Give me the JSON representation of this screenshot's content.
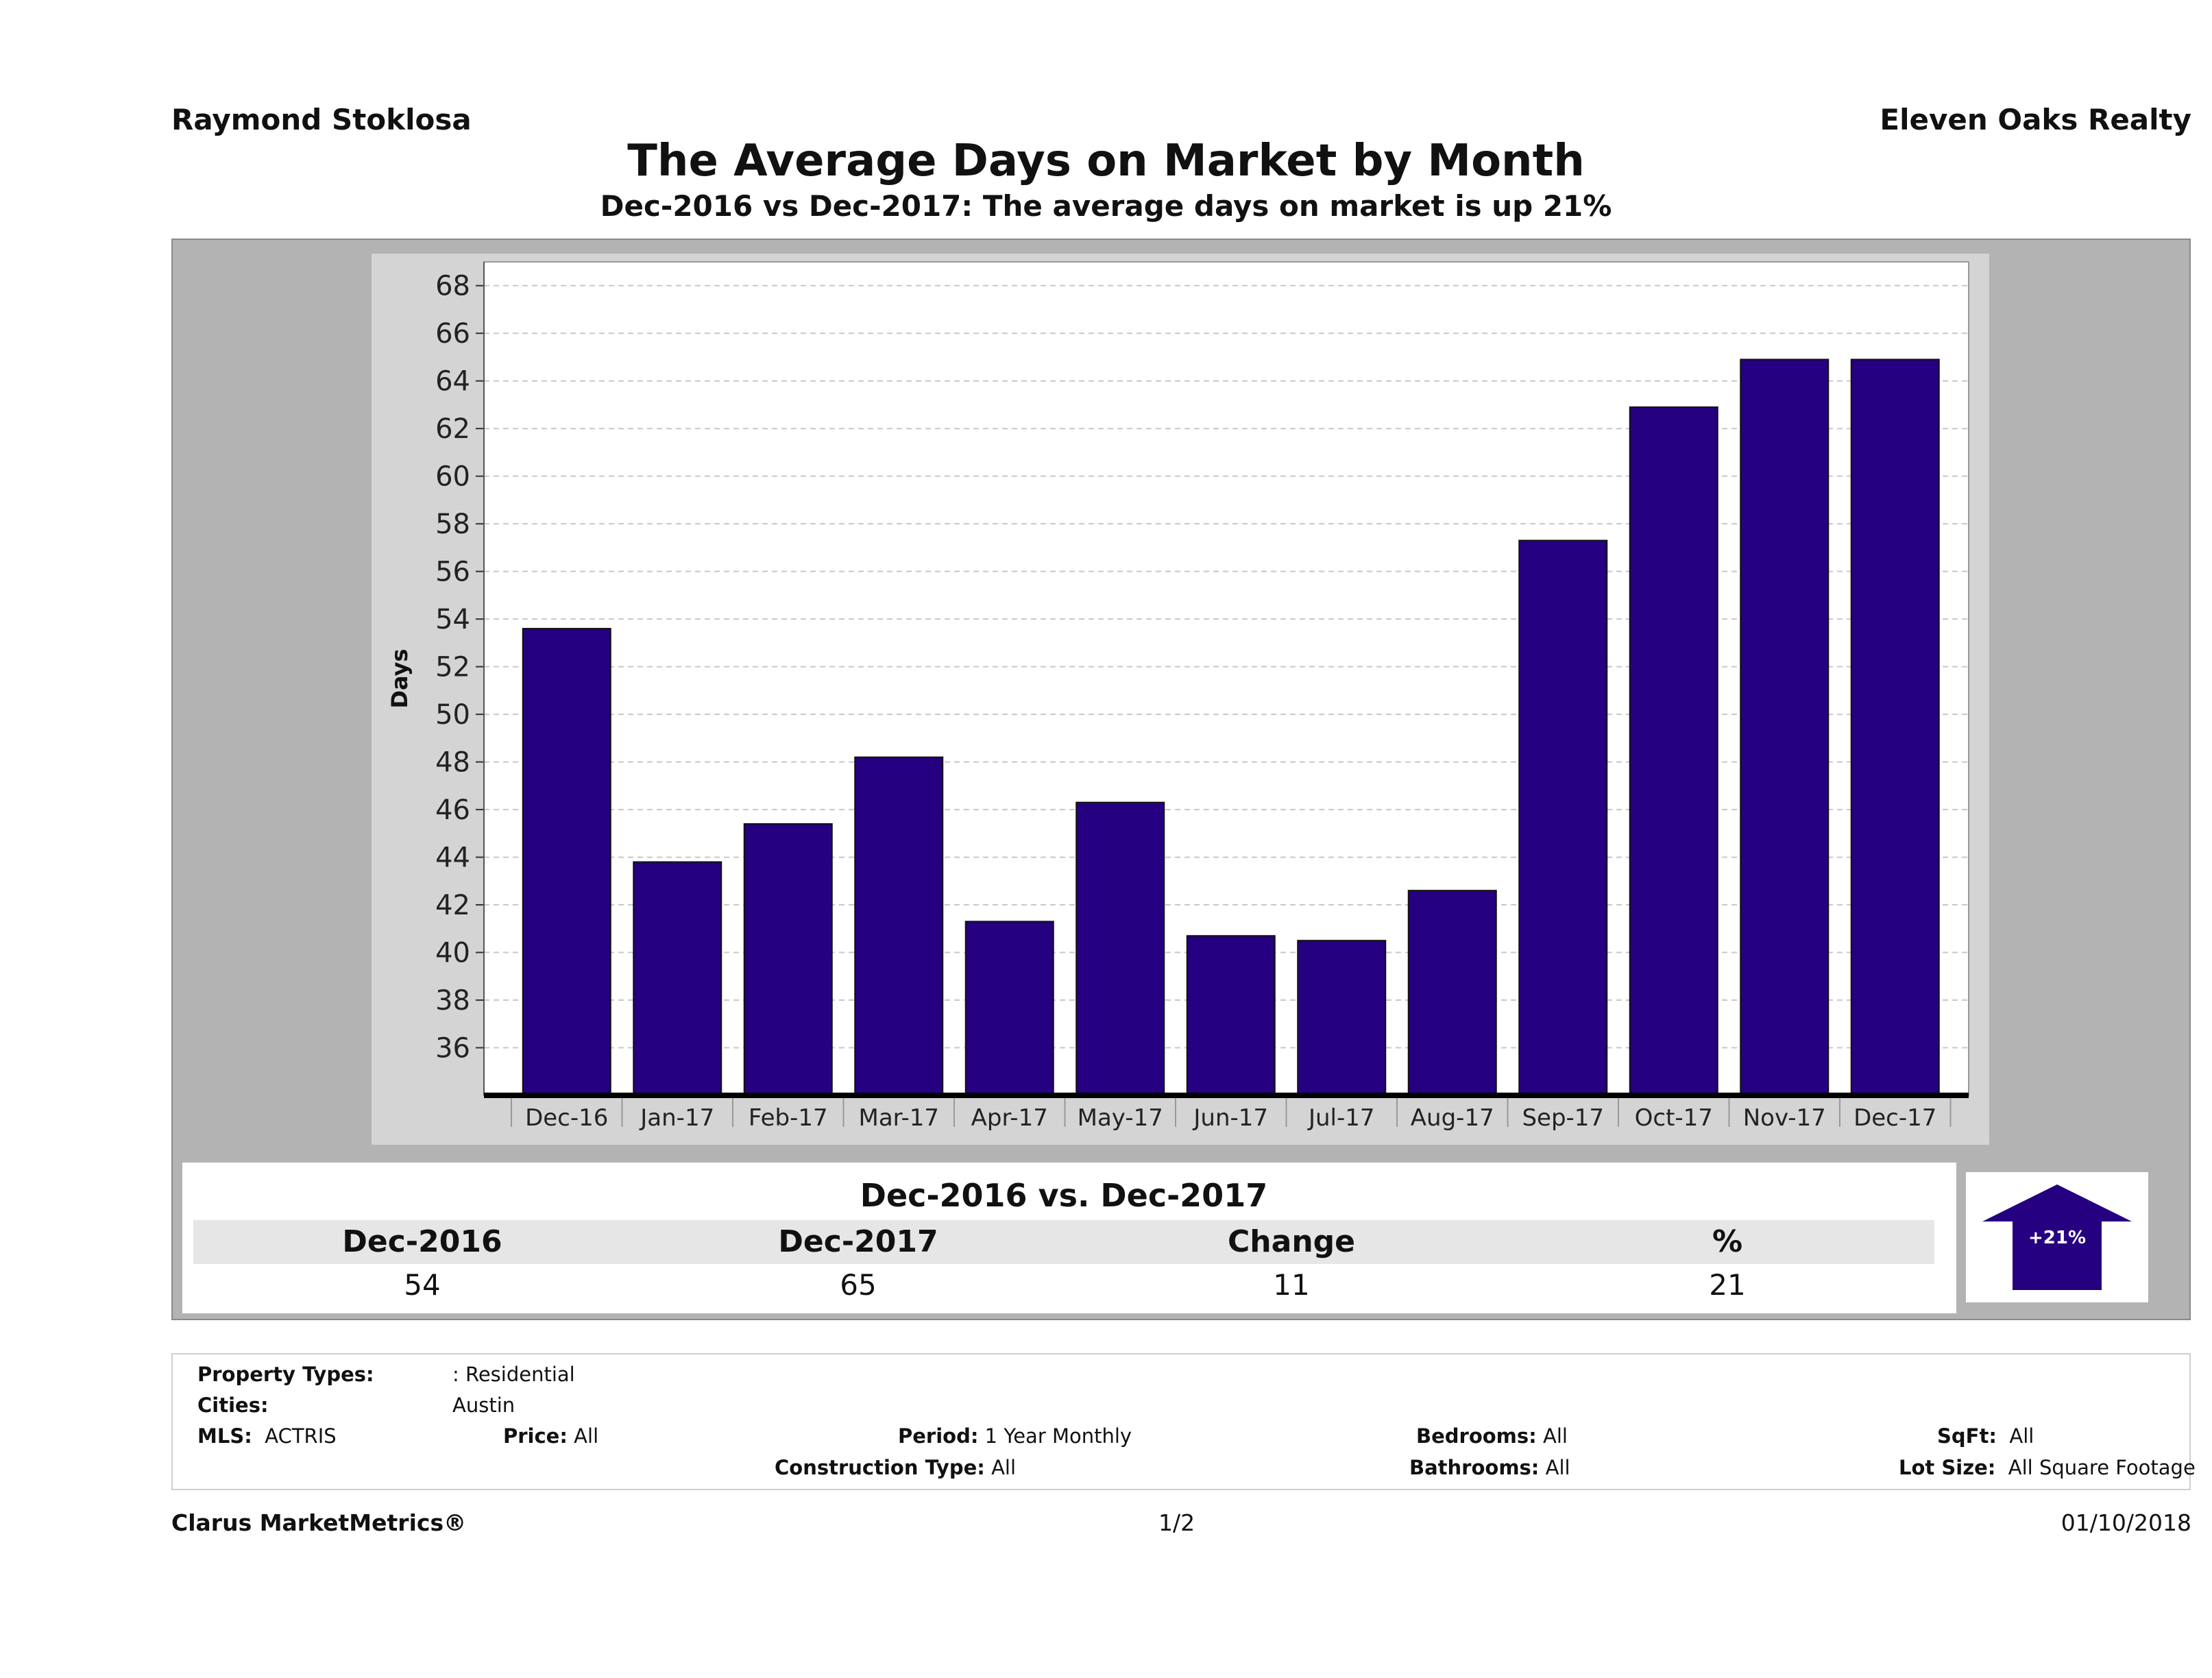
{
  "header": {
    "agent": "Raymond Stoklosa",
    "broker": "Eleven Oaks Realty",
    "title": "The Average Days on Market by Month",
    "subtitle": "Dec-2016 vs Dec-2017: The average days on market is up 21%"
  },
  "colors": {
    "bar": "#250080",
    "panel": "#b3b3b3",
    "plot_bg": "#ffffff"
  },
  "chart_data": {
    "type": "bar",
    "categories": [
      "Dec-16",
      "Jan-17",
      "Feb-17",
      "Mar-17",
      "Apr-17",
      "May-17",
      "Jun-17",
      "Jul-17",
      "Aug-17",
      "Sep-17",
      "Oct-17",
      "Nov-17",
      "Dec-17"
    ],
    "values": [
      53.6,
      43.8,
      45.4,
      48.2,
      41.3,
      46.3,
      40.7,
      40.5,
      42.6,
      57.3,
      62.9,
      64.9,
      64.9
    ],
    "ylabel": "Days",
    "xlabel": "",
    "ylim": [
      34,
      69
    ],
    "yticks": [
      36,
      38,
      40,
      42,
      44,
      46,
      48,
      50,
      52,
      54,
      56,
      58,
      60,
      62,
      64,
      66,
      68
    ],
    "grid": true
  },
  "comparison": {
    "heading": "Dec-2016 vs. Dec-2017",
    "labels": [
      "Dec-2016",
      "Dec-2017",
      "Change",
      "%"
    ],
    "values": [
      "54",
      "65",
      "11",
      "21"
    ],
    "badge": "+21%"
  },
  "criteria": {
    "property_types_label": "Property Types:",
    "property_types_value": ": Residential",
    "cities_label": "Cities:",
    "cities_value": "Austin",
    "mls_label": "MLS:",
    "mls_value": "ACTRIS",
    "price_label": "Price:",
    "price_value": "All",
    "period_label": "Period:",
    "period_value": "1 Year Monthly",
    "construction_label": "Construction Type:",
    "construction_value": "All",
    "bedrooms_label": "Bedrooms:",
    "bedrooms_value": "All",
    "bathrooms_label": "Bathrooms:",
    "bathrooms_value": "All",
    "sqft_label": "SqFt:",
    "sqft_value": "All",
    "lotsize_label": "Lot Size:",
    "lotsize_value": "All Square Footage"
  },
  "footer": {
    "brand": "Clarus MarketMetrics®",
    "page": "1/2",
    "date": "01/10/2018"
  }
}
